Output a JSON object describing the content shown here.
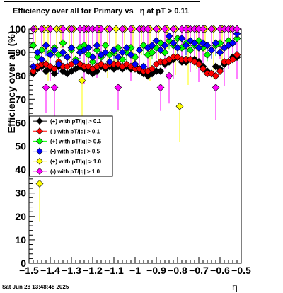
{
  "chart_data": {
    "type": "scatter",
    "title": "Efficiency over all for Primary vs   η at pT > 0.11",
    "xlabel": "η",
    "ylabel": "Efficiency over all (%)",
    "xlim": [
      -1.5,
      -0.5
    ],
    "ylim": [
      0,
      100
    ],
    "x_ticks": [
      "−1.5",
      "−1.4",
      "−1.3",
      "−1.2",
      "−1.1",
      "−1",
      "−0.9",
      "−0.8",
      "−0.7",
      "−0.6",
      "−0.5"
    ],
    "y_ticks": [
      "0",
      "10",
      "20",
      "30",
      "40",
      "50",
      "60",
      "70",
      "80",
      "90",
      "100"
    ],
    "legend_position": "middle-left",
    "series": [
      {
        "name": "(+) with pT/|q| > 0.1",
        "color": "#000000",
        "points": [
          {
            "x": -1.48,
            "y": 81
          },
          {
            "x": -1.46,
            "y": 83
          },
          {
            "x": -1.44,
            "y": 84
          },
          {
            "x": -1.42,
            "y": 82
          },
          {
            "x": -1.4,
            "y": 83
          },
          {
            "x": -1.38,
            "y": 81
          },
          {
            "x": -1.36,
            "y": 84
          },
          {
            "x": -1.34,
            "y": 82
          },
          {
            "x": -1.32,
            "y": 81
          },
          {
            "x": -1.3,
            "y": 82
          },
          {
            "x": -1.28,
            "y": 83
          },
          {
            "x": -1.26,
            "y": 84
          },
          {
            "x": -1.24,
            "y": 83
          },
          {
            "x": -1.22,
            "y": 82
          },
          {
            "x": -1.2,
            "y": 81
          },
          {
            "x": -1.18,
            "y": 82
          },
          {
            "x": -1.16,
            "y": 84
          },
          {
            "x": -1.14,
            "y": 83
          },
          {
            "x": -1.12,
            "y": 84
          },
          {
            "x": -1.1,
            "y": 83
          },
          {
            "x": -1.08,
            "y": 84
          },
          {
            "x": -1.06,
            "y": 83
          },
          {
            "x": -1.04,
            "y": 84
          },
          {
            "x": -1.02,
            "y": 83
          },
          {
            "x": -1.0,
            "y": 84
          },
          {
            "x": -0.98,
            "y": 82
          },
          {
            "x": -0.96,
            "y": 81
          },
          {
            "x": -0.94,
            "y": 80
          },
          {
            "x": -0.92,
            "y": 81
          },
          {
            "x": -0.9,
            "y": 82
          },
          {
            "x": -0.88,
            "y": 82
          },
          {
            "x": -0.86,
            "y": 85
          },
          {
            "x": -0.84,
            "y": 86
          },
          {
            "x": -0.82,
            "y": 87
          },
          {
            "x": -0.8,
            "y": 88
          },
          {
            "x": -0.78,
            "y": 86
          },
          {
            "x": -0.76,
            "y": 86
          },
          {
            "x": -0.74,
            "y": 87
          },
          {
            "x": -0.72,
            "y": 87
          },
          {
            "x": -0.7,
            "y": 86
          },
          {
            "x": -0.68,
            "y": 84
          },
          {
            "x": -0.66,
            "y": 82
          },
          {
            "x": -0.64,
            "y": 81
          },
          {
            "x": -0.62,
            "y": 84
          },
          {
            "x": -0.6,
            "y": 83
          },
          {
            "x": -0.58,
            "y": 85
          },
          {
            "x": -0.56,
            "y": 86
          },
          {
            "x": -0.54,
            "y": 88
          },
          {
            "x": -0.52,
            "y": 88
          }
        ]
      },
      {
        "name": "(-) with pT/|q| > 0.1",
        "color": "#ff0000",
        "points": [
          {
            "x": -1.48,
            "y": 82
          },
          {
            "x": -1.46,
            "y": 84
          },
          {
            "x": -1.44,
            "y": 85
          },
          {
            "x": -1.42,
            "y": 85
          },
          {
            "x": -1.4,
            "y": 84
          },
          {
            "x": -1.38,
            "y": 83
          },
          {
            "x": -1.36,
            "y": 86
          },
          {
            "x": -1.34,
            "y": 84
          },
          {
            "x": -1.32,
            "y": 84
          },
          {
            "x": -1.3,
            "y": 85
          },
          {
            "x": -1.28,
            "y": 86
          },
          {
            "x": -1.26,
            "y": 85
          },
          {
            "x": -1.24,
            "y": 84
          },
          {
            "x": -1.22,
            "y": 84
          },
          {
            "x": -1.2,
            "y": 83
          },
          {
            "x": -1.18,
            "y": 84
          },
          {
            "x": -1.16,
            "y": 85
          },
          {
            "x": -1.14,
            "y": 84
          },
          {
            "x": -1.12,
            "y": 85
          },
          {
            "x": -1.1,
            "y": 85
          },
          {
            "x": -1.08,
            "y": 85
          },
          {
            "x": -1.06,
            "y": 84
          },
          {
            "x": -1.04,
            "y": 85
          },
          {
            "x": -1.02,
            "y": 84
          },
          {
            "x": -1.0,
            "y": 83
          },
          {
            "x": -0.98,
            "y": 83
          },
          {
            "x": -0.96,
            "y": 82
          },
          {
            "x": -0.94,
            "y": 82
          },
          {
            "x": -0.92,
            "y": 83
          },
          {
            "x": -0.9,
            "y": 85
          },
          {
            "x": -0.88,
            "y": 86
          },
          {
            "x": -0.86,
            "y": 86
          },
          {
            "x": -0.84,
            "y": 87
          },
          {
            "x": -0.82,
            "y": 88
          },
          {
            "x": -0.8,
            "y": 88
          },
          {
            "x": -0.78,
            "y": 87
          },
          {
            "x": -0.76,
            "y": 87
          },
          {
            "x": -0.74,
            "y": 87
          },
          {
            "x": -0.72,
            "y": 86
          },
          {
            "x": -0.7,
            "y": 85
          },
          {
            "x": -0.68,
            "y": 83
          },
          {
            "x": -0.66,
            "y": 81
          },
          {
            "x": -0.64,
            "y": 81
          },
          {
            "x": -0.62,
            "y": 80
          },
          {
            "x": -0.6,
            "y": 82
          },
          {
            "x": -0.58,
            "y": 86
          },
          {
            "x": -0.56,
            "y": 86
          },
          {
            "x": -0.54,
            "y": 87
          },
          {
            "x": -0.52,
            "y": 89
          }
        ]
      },
      {
        "name": "(+) with pT/|q| > 0.5",
        "color": "#00ff00",
        "points": [
          {
            "x": -1.48,
            "y": 93
          },
          {
            "x": -1.46,
            "y": 88
          },
          {
            "x": -1.44,
            "y": 91
          },
          {
            "x": -1.42,
            "y": 93
          },
          {
            "x": -1.4,
            "y": 90
          },
          {
            "x": -1.38,
            "y": 92
          },
          {
            "x": -1.36,
            "y": 89
          },
          {
            "x": -1.34,
            "y": 94
          },
          {
            "x": -1.32,
            "y": 88
          },
          {
            "x": -1.3,
            "y": 91
          },
          {
            "x": -1.28,
            "y": 87
          },
          {
            "x": -1.26,
            "y": 92
          },
          {
            "x": -1.24,
            "y": 93
          },
          {
            "x": -1.22,
            "y": 89
          },
          {
            "x": -1.2,
            "y": 86
          },
          {
            "x": -1.18,
            "y": 91
          },
          {
            "x": -1.16,
            "y": 88
          },
          {
            "x": -1.14,
            "y": 93
          },
          {
            "x": -1.12,
            "y": 89
          },
          {
            "x": -1.1,
            "y": 90
          },
          {
            "x": -1.08,
            "y": 92
          },
          {
            "x": -1.06,
            "y": 87
          },
          {
            "x": -1.04,
            "y": 90
          },
          {
            "x": -1.02,
            "y": 92
          },
          {
            "x": -1.0,
            "y": 88
          },
          {
            "x": -0.98,
            "y": 91
          },
          {
            "x": -0.96,
            "y": 93
          },
          {
            "x": -0.94,
            "y": 89
          },
          {
            "x": -0.92,
            "y": 90
          },
          {
            "x": -0.9,
            "y": 92
          },
          {
            "x": -0.88,
            "y": 94
          },
          {
            "x": -0.86,
            "y": 90
          },
          {
            "x": -0.84,
            "y": 95
          },
          {
            "x": -0.82,
            "y": 93
          },
          {
            "x": -0.8,
            "y": 96
          },
          {
            "x": -0.78,
            "y": 92
          },
          {
            "x": -0.76,
            "y": 94
          },
          {
            "x": -0.74,
            "y": 91
          },
          {
            "x": -0.72,
            "y": 93
          },
          {
            "x": -0.7,
            "y": 95
          },
          {
            "x": -0.68,
            "y": 92
          },
          {
            "x": -0.66,
            "y": 89
          },
          {
            "x": -0.64,
            "y": 91
          },
          {
            "x": -0.62,
            "y": 93
          },
          {
            "x": -0.6,
            "y": 94
          },
          {
            "x": -0.58,
            "y": 92
          },
          {
            "x": -0.56,
            "y": 95
          },
          {
            "x": -0.54,
            "y": 94
          },
          {
            "x": -0.52,
            "y": 96
          }
        ]
      },
      {
        "name": "(-) with pT/|q| > 0.5",
        "color": "#0000ff",
        "points": [
          {
            "x": -1.48,
            "y": 84
          },
          {
            "x": -1.46,
            "y": 90
          },
          {
            "x": -1.44,
            "y": 87
          },
          {
            "x": -1.42,
            "y": 93
          },
          {
            "x": -1.4,
            "y": 89
          },
          {
            "x": -1.38,
            "y": 91
          },
          {
            "x": -1.36,
            "y": 85
          },
          {
            "x": -1.34,
            "y": 90
          },
          {
            "x": -1.32,
            "y": 88
          },
          {
            "x": -1.3,
            "y": 92
          },
          {
            "x": -1.28,
            "y": 86
          },
          {
            "x": -1.26,
            "y": 90
          },
          {
            "x": -1.24,
            "y": 91
          },
          {
            "x": -1.22,
            "y": 92
          },
          {
            "x": -1.2,
            "y": 88
          },
          {
            "x": -1.18,
            "y": 93
          },
          {
            "x": -1.16,
            "y": 89
          },
          {
            "x": -1.14,
            "y": 90
          },
          {
            "x": -1.12,
            "y": 86
          },
          {
            "x": -1.1,
            "y": 91
          },
          {
            "x": -1.08,
            "y": 88
          },
          {
            "x": -1.06,
            "y": 90
          },
          {
            "x": -1.04,
            "y": 92
          },
          {
            "x": -1.02,
            "y": 89
          },
          {
            "x": -1.0,
            "y": 85
          },
          {
            "x": -0.98,
            "y": 91
          },
          {
            "x": -0.96,
            "y": 84
          },
          {
            "x": -0.94,
            "y": 92
          },
          {
            "x": -0.92,
            "y": 93
          },
          {
            "x": -0.9,
            "y": 95
          },
          {
            "x": -0.88,
            "y": 91
          },
          {
            "x": -0.86,
            "y": 93
          },
          {
            "x": -0.84,
            "y": 97
          },
          {
            "x": -0.82,
            "y": 94
          },
          {
            "x": -0.8,
            "y": 92
          },
          {
            "x": -0.78,
            "y": 96
          },
          {
            "x": -0.76,
            "y": 93
          },
          {
            "x": -0.74,
            "y": 95
          },
          {
            "x": -0.72,
            "y": 94
          },
          {
            "x": -0.7,
            "y": 92
          },
          {
            "x": -0.68,
            "y": 94
          },
          {
            "x": -0.66,
            "y": 93
          },
          {
            "x": -0.64,
            "y": 91
          },
          {
            "x": -0.62,
            "y": 94
          },
          {
            "x": -0.6,
            "y": 90
          },
          {
            "x": -0.58,
            "y": 92
          },
          {
            "x": -0.56,
            "y": 93
          },
          {
            "x": -0.54,
            "y": 94
          },
          {
            "x": -0.52,
            "y": 98
          }
        ]
      },
      {
        "name": "(+) with pT/|q| > 1.0",
        "color": "#ffff00",
        "points": [
          {
            "x": -1.47,
            "y": 100
          },
          {
            "x": -1.45,
            "y": 34
          },
          {
            "x": -1.43,
            "y": 100
          },
          {
            "x": -1.41,
            "y": 100
          },
          {
            "x": -1.37,
            "y": 100
          },
          {
            "x": -1.35,
            "y": 100
          },
          {
            "x": -1.31,
            "y": 100
          },
          {
            "x": -1.29,
            "y": 100
          },
          {
            "x": -1.25,
            "y": 78
          },
          {
            "x": -1.23,
            "y": 100
          },
          {
            "x": -1.17,
            "y": 100
          },
          {
            "x": -1.13,
            "y": 100
          },
          {
            "x": -1.09,
            "y": 100
          },
          {
            "x": -1.05,
            "y": 100
          },
          {
            "x": -1.01,
            "y": 100
          },
          {
            "x": -0.97,
            "y": 100
          },
          {
            "x": -0.93,
            "y": 100
          },
          {
            "x": -0.89,
            "y": 100
          },
          {
            "x": -0.85,
            "y": 100
          },
          {
            "x": -0.81,
            "y": 100
          },
          {
            "x": -0.79,
            "y": 67
          },
          {
            "x": -0.75,
            "y": 100
          },
          {
            "x": -0.71,
            "y": 100
          },
          {
            "x": -0.67,
            "y": 100
          },
          {
            "x": -0.63,
            "y": 100
          },
          {
            "x": -0.59,
            "y": 100
          },
          {
            "x": -0.55,
            "y": 100
          }
        ]
      },
      {
        "name": "(-) with pT/|q| > 1.0",
        "color": "#ff00ff",
        "points": [
          {
            "x": -1.48,
            "y": 100
          },
          {
            "x": -1.44,
            "y": 100
          },
          {
            "x": -1.42,
            "y": 75
          },
          {
            "x": -1.4,
            "y": 100
          },
          {
            "x": -1.38,
            "y": 75
          },
          {
            "x": -1.34,
            "y": 100
          },
          {
            "x": -1.3,
            "y": 100
          },
          {
            "x": -1.26,
            "y": 100
          },
          {
            "x": -1.24,
            "y": 100
          },
          {
            "x": -1.22,
            "y": 100
          },
          {
            "x": -1.2,
            "y": 100
          },
          {
            "x": -1.18,
            "y": 100
          },
          {
            "x": -1.16,
            "y": 100
          },
          {
            "x": -1.12,
            "y": 100
          },
          {
            "x": -1.08,
            "y": 75
          },
          {
            "x": -1.06,
            "y": 100
          },
          {
            "x": -1.02,
            "y": 100
          },
          {
            "x": -0.98,
            "y": 100
          },
          {
            "x": -0.96,
            "y": 100
          },
          {
            "x": -0.94,
            "y": 100
          },
          {
            "x": -0.9,
            "y": 100
          },
          {
            "x": -0.88,
            "y": 75
          },
          {
            "x": -0.86,
            "y": 100
          },
          {
            "x": -0.84,
            "y": 80
          },
          {
            "x": -0.82,
            "y": 100
          },
          {
            "x": -0.78,
            "y": 100
          },
          {
            "x": -0.76,
            "y": 100
          },
          {
            "x": -0.74,
            "y": 100
          },
          {
            "x": -0.72,
            "y": 100
          },
          {
            "x": -0.7,
            "y": 100
          },
          {
            "x": -0.68,
            "y": 100
          },
          {
            "x": -0.64,
            "y": 100
          },
          {
            "x": -0.62,
            "y": 75
          },
          {
            "x": -0.6,
            "y": 100
          },
          {
            "x": -0.58,
            "y": 100
          },
          {
            "x": -0.56,
            "y": 100
          },
          {
            "x": -0.54,
            "y": 100
          },
          {
            "x": -0.52,
            "y": 100
          }
        ]
      }
    ]
  },
  "footer_text": "Sat Jun 28 13:48:48 2025"
}
